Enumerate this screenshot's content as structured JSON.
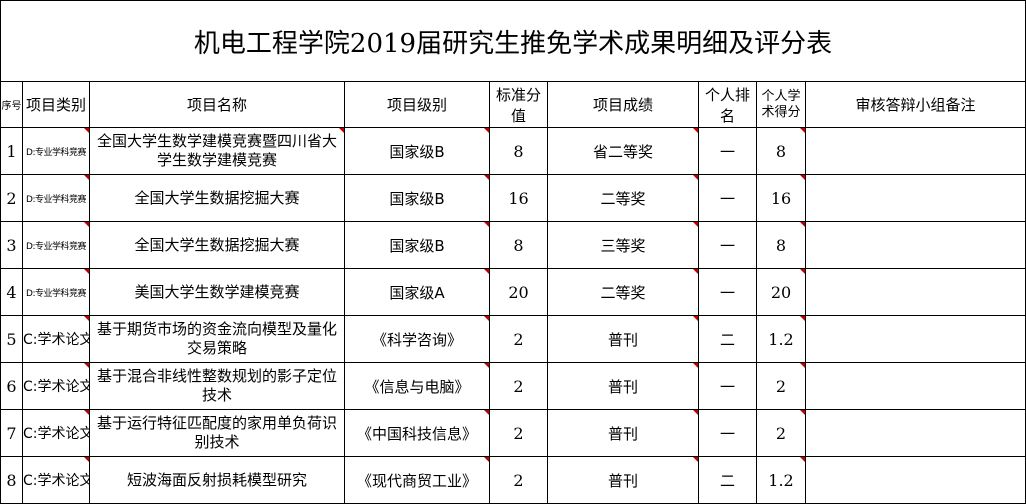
{
  "title": "机电工程学院2019届研究生推免学术成果明细及评分表",
  "headers": {
    "seq": "序号",
    "category": "项目类别",
    "name": "项目名称",
    "level": "项目级别",
    "standard": "标准分值",
    "result": "项目成绩",
    "rank": "个人排名",
    "score": "个人学术得分",
    "remark": "审核答辩小组备注"
  },
  "rows": [
    {
      "seq": "1",
      "category": "D:专业学科竞赛",
      "name": "全国大学生数学建模竞赛暨四川省大学生数学建模竞赛",
      "level": "国家级B",
      "standard": "8",
      "result": "省二等奖",
      "rank": "一",
      "score": "8",
      "remark": ""
    },
    {
      "seq": "2",
      "category": "D:专业学科竞赛",
      "name": "全国大学生数据挖掘大赛",
      "level": "国家级B",
      "standard": "16",
      "result": "二等奖",
      "rank": "一",
      "score": "16",
      "remark": ""
    },
    {
      "seq": "3",
      "category": "D:专业学科竞赛",
      "name": "全国大学生数据挖掘大赛",
      "level": "国家级B",
      "standard": "8",
      "result": "三等奖",
      "rank": "一",
      "score": "8",
      "remark": ""
    },
    {
      "seq": "4",
      "category": "D:专业学科竞赛",
      "name": "美国大学生数学建模竞赛",
      "level": "国家级A",
      "standard": "20",
      "result": "二等奖",
      "rank": "一",
      "score": "20",
      "remark": ""
    },
    {
      "seq": "5",
      "category": "C:学术论文",
      "name": "基于期货市场的资金流向模型及量化交易策略",
      "level": "《科学咨询》",
      "standard": "2",
      "result": "普刊",
      "rank": "二",
      "score": "1.2",
      "remark": ""
    },
    {
      "seq": "6",
      "category": "C:学术论文",
      "name": "基于混合非线性整数规划的影子定位技术",
      "level": "《信息与电脑》",
      "standard": "2",
      "result": "普刊",
      "rank": "一",
      "score": "2",
      "remark": ""
    },
    {
      "seq": "7",
      "category": "C:学术论文",
      "name": "基于运行特征匹配度的家用单负荷识别技术",
      "level": "《中国科技信息》",
      "standard": "2",
      "result": "普刊",
      "rank": "一",
      "score": "2",
      "remark": ""
    },
    {
      "seq": "8",
      "category": "C:学术论文",
      "name": "短波海面反射损耗模型研究",
      "level": "《现代商贸工业》",
      "standard": "2",
      "result": "普刊",
      "rank": "二",
      "score": "1.2",
      "remark": ""
    }
  ]
}
